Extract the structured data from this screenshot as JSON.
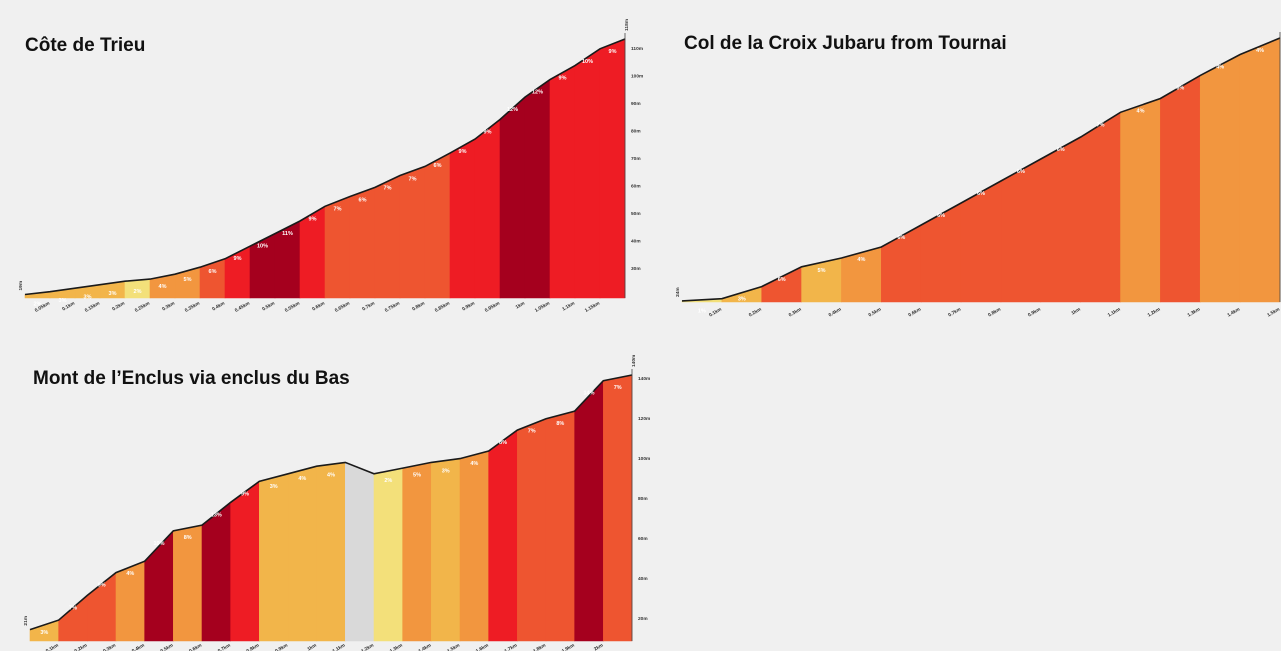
{
  "chart_data": [
    {
      "type": "area",
      "title": "Côte de Trieu",
      "segment_colors": [
        "#f2b54a",
        "#f2b54a",
        "#f2b54a",
        "#f2b54a",
        "#f3e07a",
        "#f2963f",
        "#f2963f",
        "#ee5530",
        "#ee1c24",
        "#a5001e",
        "#a5001e",
        "#ee1c24",
        "#ee5530",
        "#ee5530",
        "#ee5530",
        "#ee5530",
        "#ee5530",
        "#ee1c24",
        "#ee1c24",
        "#a5001e",
        "#a5001e",
        "#ee1c24",
        "#ee1c24",
        "#ee1c24"
      ],
      "segment_labels": [
        "2%",
        "3%",
        "3%",
        "3%",
        "2%",
        "4%",
        "5%",
        "6%",
        "9%",
        "10%",
        "11%",
        "9%",
        "7%",
        "6%",
        "7%",
        "7%",
        "6%",
        "9%",
        "9%",
        "12%",
        "12%",
        "9%",
        "10%",
        "9%"
      ],
      "profile": [
        0.05,
        0.09,
        0.14,
        0.19,
        0.24,
        0.27,
        0.34,
        0.44,
        0.56,
        0.74,
        0.92,
        1.1,
        1.31,
        1.45,
        1.58,
        1.75,
        1.88,
        2.07,
        2.27,
        2.55,
        2.87,
        3.12,
        3.32,
        3.56,
        3.7
      ],
      "x_tick_labels": [
        "0.05km",
        "0.1km",
        "0.15km",
        "0.2km",
        "0.25km",
        "0.3km",
        "0.35km",
        "0.4km",
        "0.45km",
        "0.5km",
        "0.55km",
        "0.6km",
        "0.65km",
        "0.7km",
        "0.75km",
        "0.8km",
        "0.85km",
        "0.9km",
        "0.95km",
        "1km",
        "1.05km",
        "1.1km",
        "1.15km"
      ],
      "y_tick_labels": [
        "30m",
        "40m",
        "50m",
        "60m",
        "70m",
        "80m",
        "90m",
        "100m",
        "110m"
      ],
      "start_label": "19m",
      "end_label": "118m"
    },
    {
      "type": "area",
      "title": "Col de la Croix Jubaru from Tournai",
      "segment_colors": [
        "#f3e07a",
        "#f2b54a",
        "#ee5530",
        "#f2b54a",
        "#f2963f",
        "#ee5530",
        "#ee5530",
        "#ee5530",
        "#ee5530",
        "#ee5530",
        "#ee5530",
        "#f2963f",
        "#ee5530",
        "#f2963f",
        "#f2963f"
      ],
      "segment_labels": [
        "1%",
        "3%",
        "6%",
        "5%",
        "4%",
        "6%",
        "6%",
        "6%",
        "6%",
        "6%",
        "7%",
        "4%",
        "6%",
        "4%",
        "4%"
      ],
      "profile": [
        0.02,
        0.06,
        0.28,
        0.64,
        0.8,
        1.0,
        1.4,
        1.8,
        2.2,
        2.6,
        3.0,
        3.45,
        3.7,
        4.12,
        4.5,
        4.8
      ],
      "x_tick_labels": [
        "0.1km",
        "0.2km",
        "0.3km",
        "0.4km",
        "0.5km",
        "0.6km",
        "0.7km",
        "0.8km",
        "0.9km",
        "1km",
        "1.1km",
        "1.2km",
        "1.3km",
        "1.4km",
        "1.5km"
      ],
      "y_tick_labels": [],
      "start_label": "24m",
      "end_label": ""
    },
    {
      "type": "area",
      "title": "Mont de l’Enclus via enclus du Bas",
      "segment_colors": [
        "#f2b54a",
        "#ee5530",
        "#ee5530",
        "#f2963f",
        "#a5001e",
        "#f2963f",
        "#a5001e",
        "#ee1c24",
        "#f2b54a",
        "#f2b54a",
        "#f2b54a",
        "#d9d9d9",
        "#f3e07a",
        "#f2963f",
        "#f2b54a",
        "#f2963f",
        "#ee1c24",
        "#ee5530",
        "#ee5530",
        "#a5001e",
        "#ee5530"
      ],
      "segment_labels": [
        "3%",
        "7%",
        "9%",
        "4%",
        "10%",
        "8%",
        "13%",
        "9%",
        "3%",
        "4%",
        "4%",
        "",
        "2%",
        "5%",
        "3%",
        "4%",
        "8%",
        "7%",
        "8%",
        "14%",
        "7%"
      ],
      "profile": [
        0.06,
        0.11,
        0.24,
        0.36,
        0.42,
        0.58,
        0.61,
        0.73,
        0.84,
        0.88,
        0.92,
        0.94,
        0.88,
        0.91,
        0.94,
        0.96,
        1.0,
        1.11,
        1.17,
        1.21,
        1.37,
        1.4
      ],
      "x_tick_labels": [
        "0.1km",
        "0.2km",
        "0.3km",
        "0.4km",
        "0.5km",
        "0.6km",
        "0.7km",
        "0.8km",
        "0.9km",
        "1km",
        "1.1km",
        "1.2km",
        "1.3km",
        "1.4km",
        "1.5km",
        "1.6km",
        "1.7km",
        "1.8km",
        "1.9km",
        "2km"
      ],
      "y_tick_labels": [
        "20m",
        "40m",
        "60m",
        "80m",
        "100m",
        "120m",
        "140m"
      ],
      "start_label": "21m",
      "end_label": "140m"
    }
  ]
}
